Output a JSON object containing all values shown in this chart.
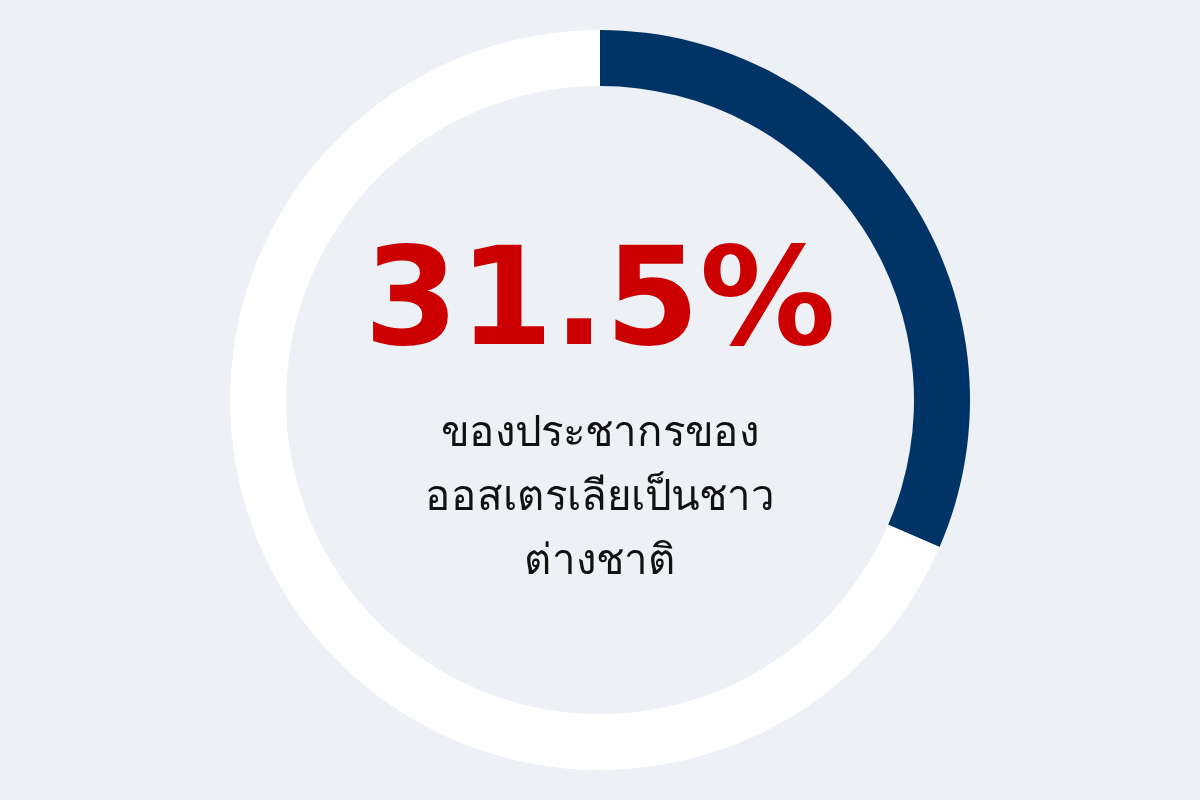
{
  "chart_data": {
    "type": "donut",
    "categories": [
      null,
      null
    ],
    "values": [
      31.5,
      68.5
    ],
    "colors": [
      "#003366",
      "#ffffff"
    ],
    "value_labels": [
      "31.5%",
      null
    ],
    "annotations": [
      "ของประชากรของออสเตรเลียเป็นชาวต่างชาติ"
    ]
  }
}
